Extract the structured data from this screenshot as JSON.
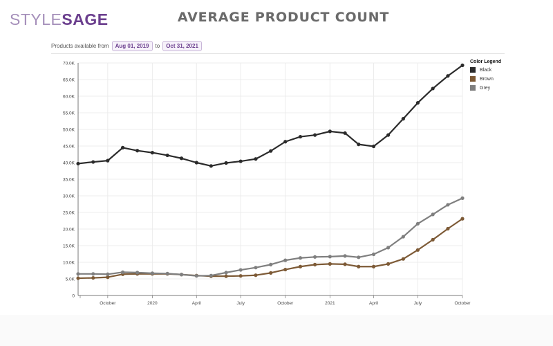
{
  "brand": {
    "logo_part1": "STYLE",
    "logo_part2": "SAGE"
  },
  "header": {
    "title": "AVERAGE PRODUCT COUNT"
  },
  "filter": {
    "label_from": "Products available from",
    "start_date": "Aug 01, 2019",
    "label_to": "to",
    "end_date": "Oct 31, 2021"
  },
  "legend": {
    "title": "Color Legend",
    "items": [
      {
        "label": "Black",
        "color": "#2b2b2b"
      },
      {
        "label": "Brown",
        "color": "#7d5a36"
      },
      {
        "label": "Grey",
        "color": "#7f7f7f"
      }
    ]
  },
  "chart_data": {
    "type": "line",
    "title": "AVERAGE PRODUCT COUNT",
    "xlabel": "",
    "ylabel": "",
    "ylim": [
      0,
      70000
    ],
    "yticks": [
      0,
      5000,
      10000,
      15000,
      20000,
      25000,
      30000,
      35000,
      40000,
      45000,
      50000,
      55000,
      60000,
      65000,
      70000
    ],
    "ytick_labels": [
      "0",
      "5.0K",
      "10.0K",
      "15.0K",
      "20.0K",
      "25.0K",
      "30.0K",
      "35.0K",
      "40.0K",
      "45.0K",
      "50.0K",
      "55.0K",
      "60.0K",
      "65.0K",
      "70.0K"
    ],
    "xlim": [
      "2019-08-01",
      "2021-10-01"
    ],
    "xticks": [
      "2019-10-01",
      "2020-01-01",
      "2020-04-01",
      "2020-07-01",
      "2020-10-01",
      "2021-01-01",
      "2021-04-01",
      "2021-07-01",
      "2021-10-01"
    ],
    "xtick_labels": [
      "October",
      "2020",
      "April",
      "July",
      "October",
      "2021",
      "April",
      "July",
      "October"
    ],
    "x": [
      "2019-08-01",
      "2019-09-01",
      "2019-10-01",
      "2019-11-01",
      "2019-12-01",
      "2020-01-01",
      "2020-02-01",
      "2020-03-01",
      "2020-04-01",
      "2020-05-01",
      "2020-06-01",
      "2020-07-01",
      "2020-08-01",
      "2020-09-01",
      "2020-10-01",
      "2020-11-01",
      "2020-12-01",
      "2021-01-01",
      "2021-02-01",
      "2021-03-01",
      "2021-04-01",
      "2021-05-01",
      "2021-06-01",
      "2021-07-01",
      "2021-08-01",
      "2021-09-01",
      "2021-10-01"
    ],
    "series": [
      {
        "name": "Black",
        "color": "#2b2b2b",
        "values": [
          39700,
          40200,
          40600,
          44500,
          43600,
          43000,
          42200,
          41300,
          40000,
          39000,
          39900,
          40400,
          41100,
          43500,
          46300,
          47800,
          48300,
          49400,
          48900,
          45500,
          44900,
          48300,
          53200,
          58000,
          62300,
          66100,
          69300
        ]
      },
      {
        "name": "Brown",
        "color": "#7d5a36",
        "values": [
          5200,
          5300,
          5500,
          6400,
          6500,
          6500,
          6500,
          6300,
          6000,
          5800,
          5800,
          5900,
          6100,
          6800,
          7800,
          8700,
          9300,
          9500,
          9400,
          8700,
          8700,
          9500,
          11000,
          13700,
          16800,
          20100,
          23100
        ]
      },
      {
        "name": "Grey",
        "color": "#7f7f7f",
        "values": [
          6500,
          6500,
          6400,
          7000,
          6900,
          6700,
          6600,
          6300,
          5900,
          6000,
          6900,
          7700,
          8400,
          9300,
          10600,
          11300,
          11600,
          11700,
          11900,
          11500,
          12400,
          14400,
          17700,
          21600,
          24400,
          27300,
          29300
        ]
      }
    ],
    "grid": true,
    "legend_position": "right"
  }
}
